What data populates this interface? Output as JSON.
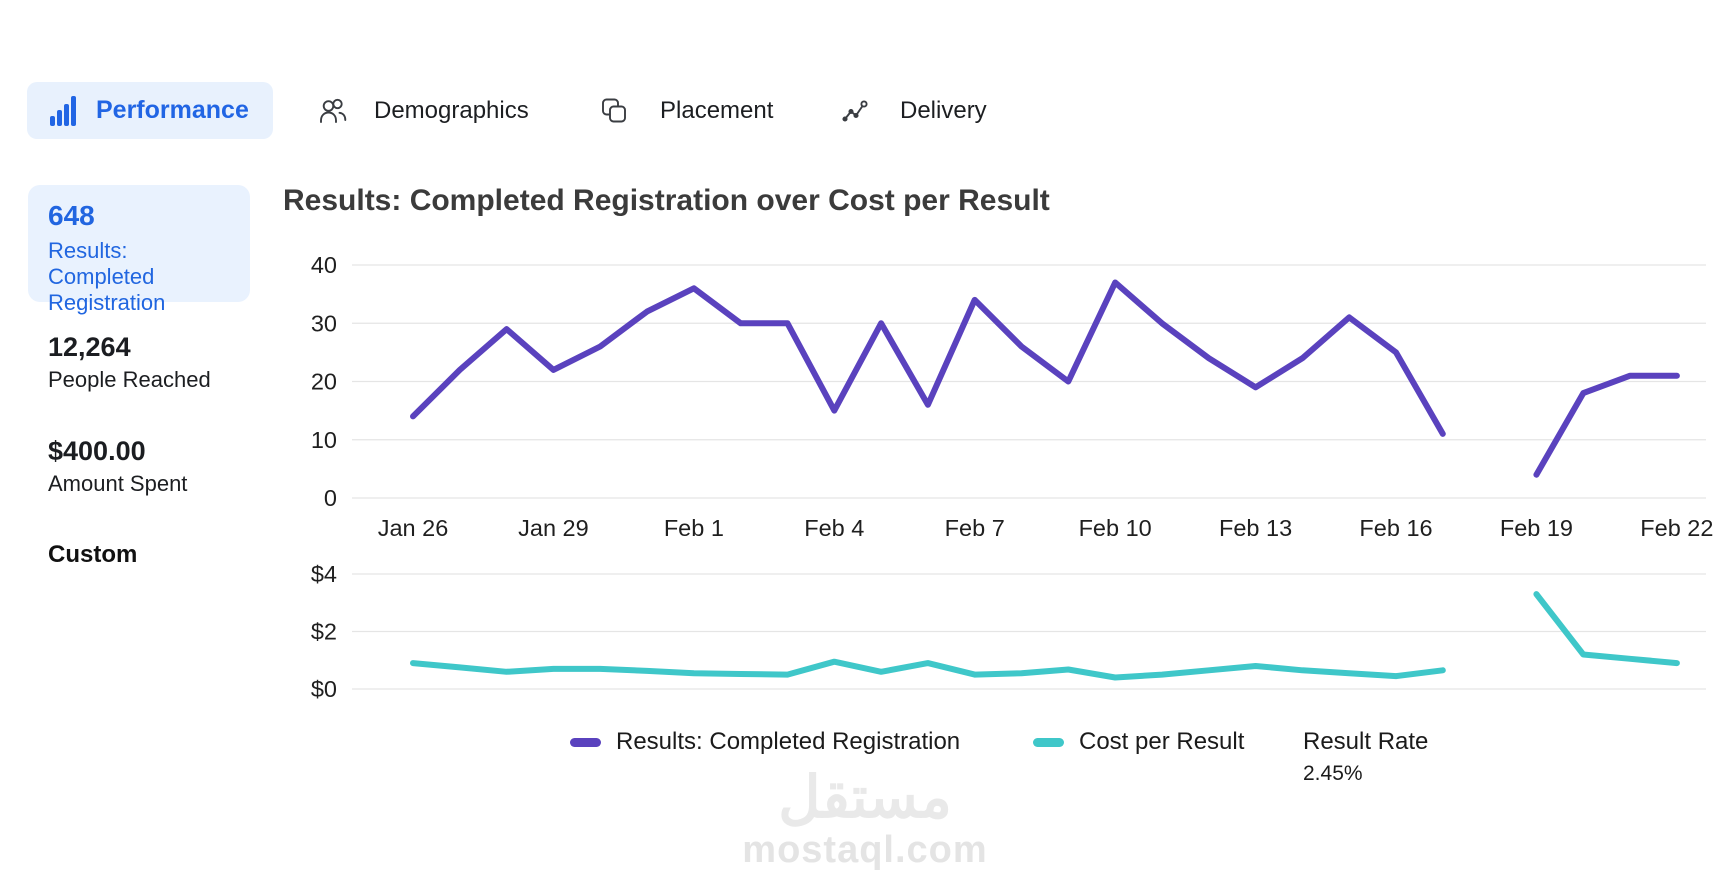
{
  "tabs": [
    {
      "label": "Performance",
      "icon": "bar-chart-icon",
      "active": true
    },
    {
      "label": "Demographics",
      "icon": "people-icon",
      "active": false
    },
    {
      "label": "Placement",
      "icon": "overlap-squares-icon",
      "active": false
    },
    {
      "label": "Delivery",
      "icon": "trend-line-icon",
      "active": false
    }
  ],
  "sidebar": {
    "metrics": [
      {
        "value": "648",
        "label": "Results: Completed Registration",
        "highlighted": true
      },
      {
        "value": "12,264",
        "label": "People Reached",
        "highlighted": false
      },
      {
        "value": "$400.00",
        "label": "Amount Spent",
        "highlighted": false
      }
    ],
    "section_label": "Custom"
  },
  "chart": {
    "title": "Results: Completed Registration over Cost per Result"
  },
  "legend": {
    "items": [
      {
        "label": "Results: Completed Registration",
        "color": "#5a42be"
      },
      {
        "label": "Cost per Result",
        "color": "#3fc7c9"
      }
    ],
    "result_rate_label": "Result Rate",
    "result_rate_value": "2.45%"
  },
  "watermark": {
    "line1": "مستقل",
    "line2": "mostaql.com"
  },
  "colors": {
    "accent_blue": "#2165e4",
    "tab_pill_bg": "#e8f1fd",
    "card_bg": "#e9f2fe",
    "results_line": "#5a42be",
    "cost_line": "#3fc7c9",
    "gridline": "#e5e5e5",
    "axis_text": "#1f1f1f"
  },
  "chart_data": {
    "type": "line",
    "title": "Results: Completed Registration over Cost per Result",
    "x": [
      "Jan 26",
      "Jan 27",
      "Jan 28",
      "Jan 29",
      "Jan 30",
      "Jan 31",
      "Feb 1",
      "Feb 2",
      "Feb 3",
      "Feb 4",
      "Feb 5",
      "Feb 6",
      "Feb 7",
      "Feb 8",
      "Feb 9",
      "Feb 10",
      "Feb 11",
      "Feb 12",
      "Feb 13",
      "Feb 14",
      "Feb 15",
      "Feb 16",
      "Feb 17",
      "Feb 18",
      "Feb 19",
      "Feb 20",
      "Feb 21",
      "Feb 22"
    ],
    "x_tick_labels": [
      "Jan 26",
      "Jan 29",
      "Feb 1",
      "Feb 4",
      "Feb 7",
      "Feb 10",
      "Feb 13",
      "Feb 16",
      "Feb 19",
      "Feb 22"
    ],
    "panels": [
      {
        "name": "Results: Completed Registration",
        "color": "#5a42be",
        "ylim": [
          0,
          40
        ],
        "yticks": [
          {
            "v": 0,
            "label": "0"
          },
          {
            "v": 10,
            "label": "10"
          },
          {
            "v": 20,
            "label": "20"
          },
          {
            "v": 30,
            "label": "30"
          },
          {
            "v": 40,
            "label": "40"
          }
        ],
        "values": [
          14,
          22,
          29,
          22,
          26,
          32,
          36,
          30,
          30,
          15,
          30,
          16,
          34,
          26,
          20,
          37,
          30,
          24,
          19,
          24,
          31,
          25,
          11,
          null,
          4,
          18,
          21,
          21
        ]
      },
      {
        "name": "Cost per Result",
        "color": "#3fc7c9",
        "ylim": [
          0,
          4
        ],
        "yticks": [
          {
            "v": 0,
            "label": "$0"
          },
          {
            "v": 2,
            "label": "$2"
          },
          {
            "v": 4,
            "label": "$4"
          }
        ],
        "values": [
          0.9,
          0.75,
          0.6,
          0.7,
          0.7,
          0.63,
          0.55,
          0.52,
          0.5,
          0.95,
          0.6,
          0.9,
          0.5,
          0.55,
          0.68,
          0.4,
          0.5,
          0.65,
          0.8,
          0.65,
          0.55,
          0.45,
          0.65,
          null,
          3.3,
          1.2,
          1.05,
          0.9
        ]
      }
    ],
    "legend_position": "bottom",
    "grid": true
  }
}
